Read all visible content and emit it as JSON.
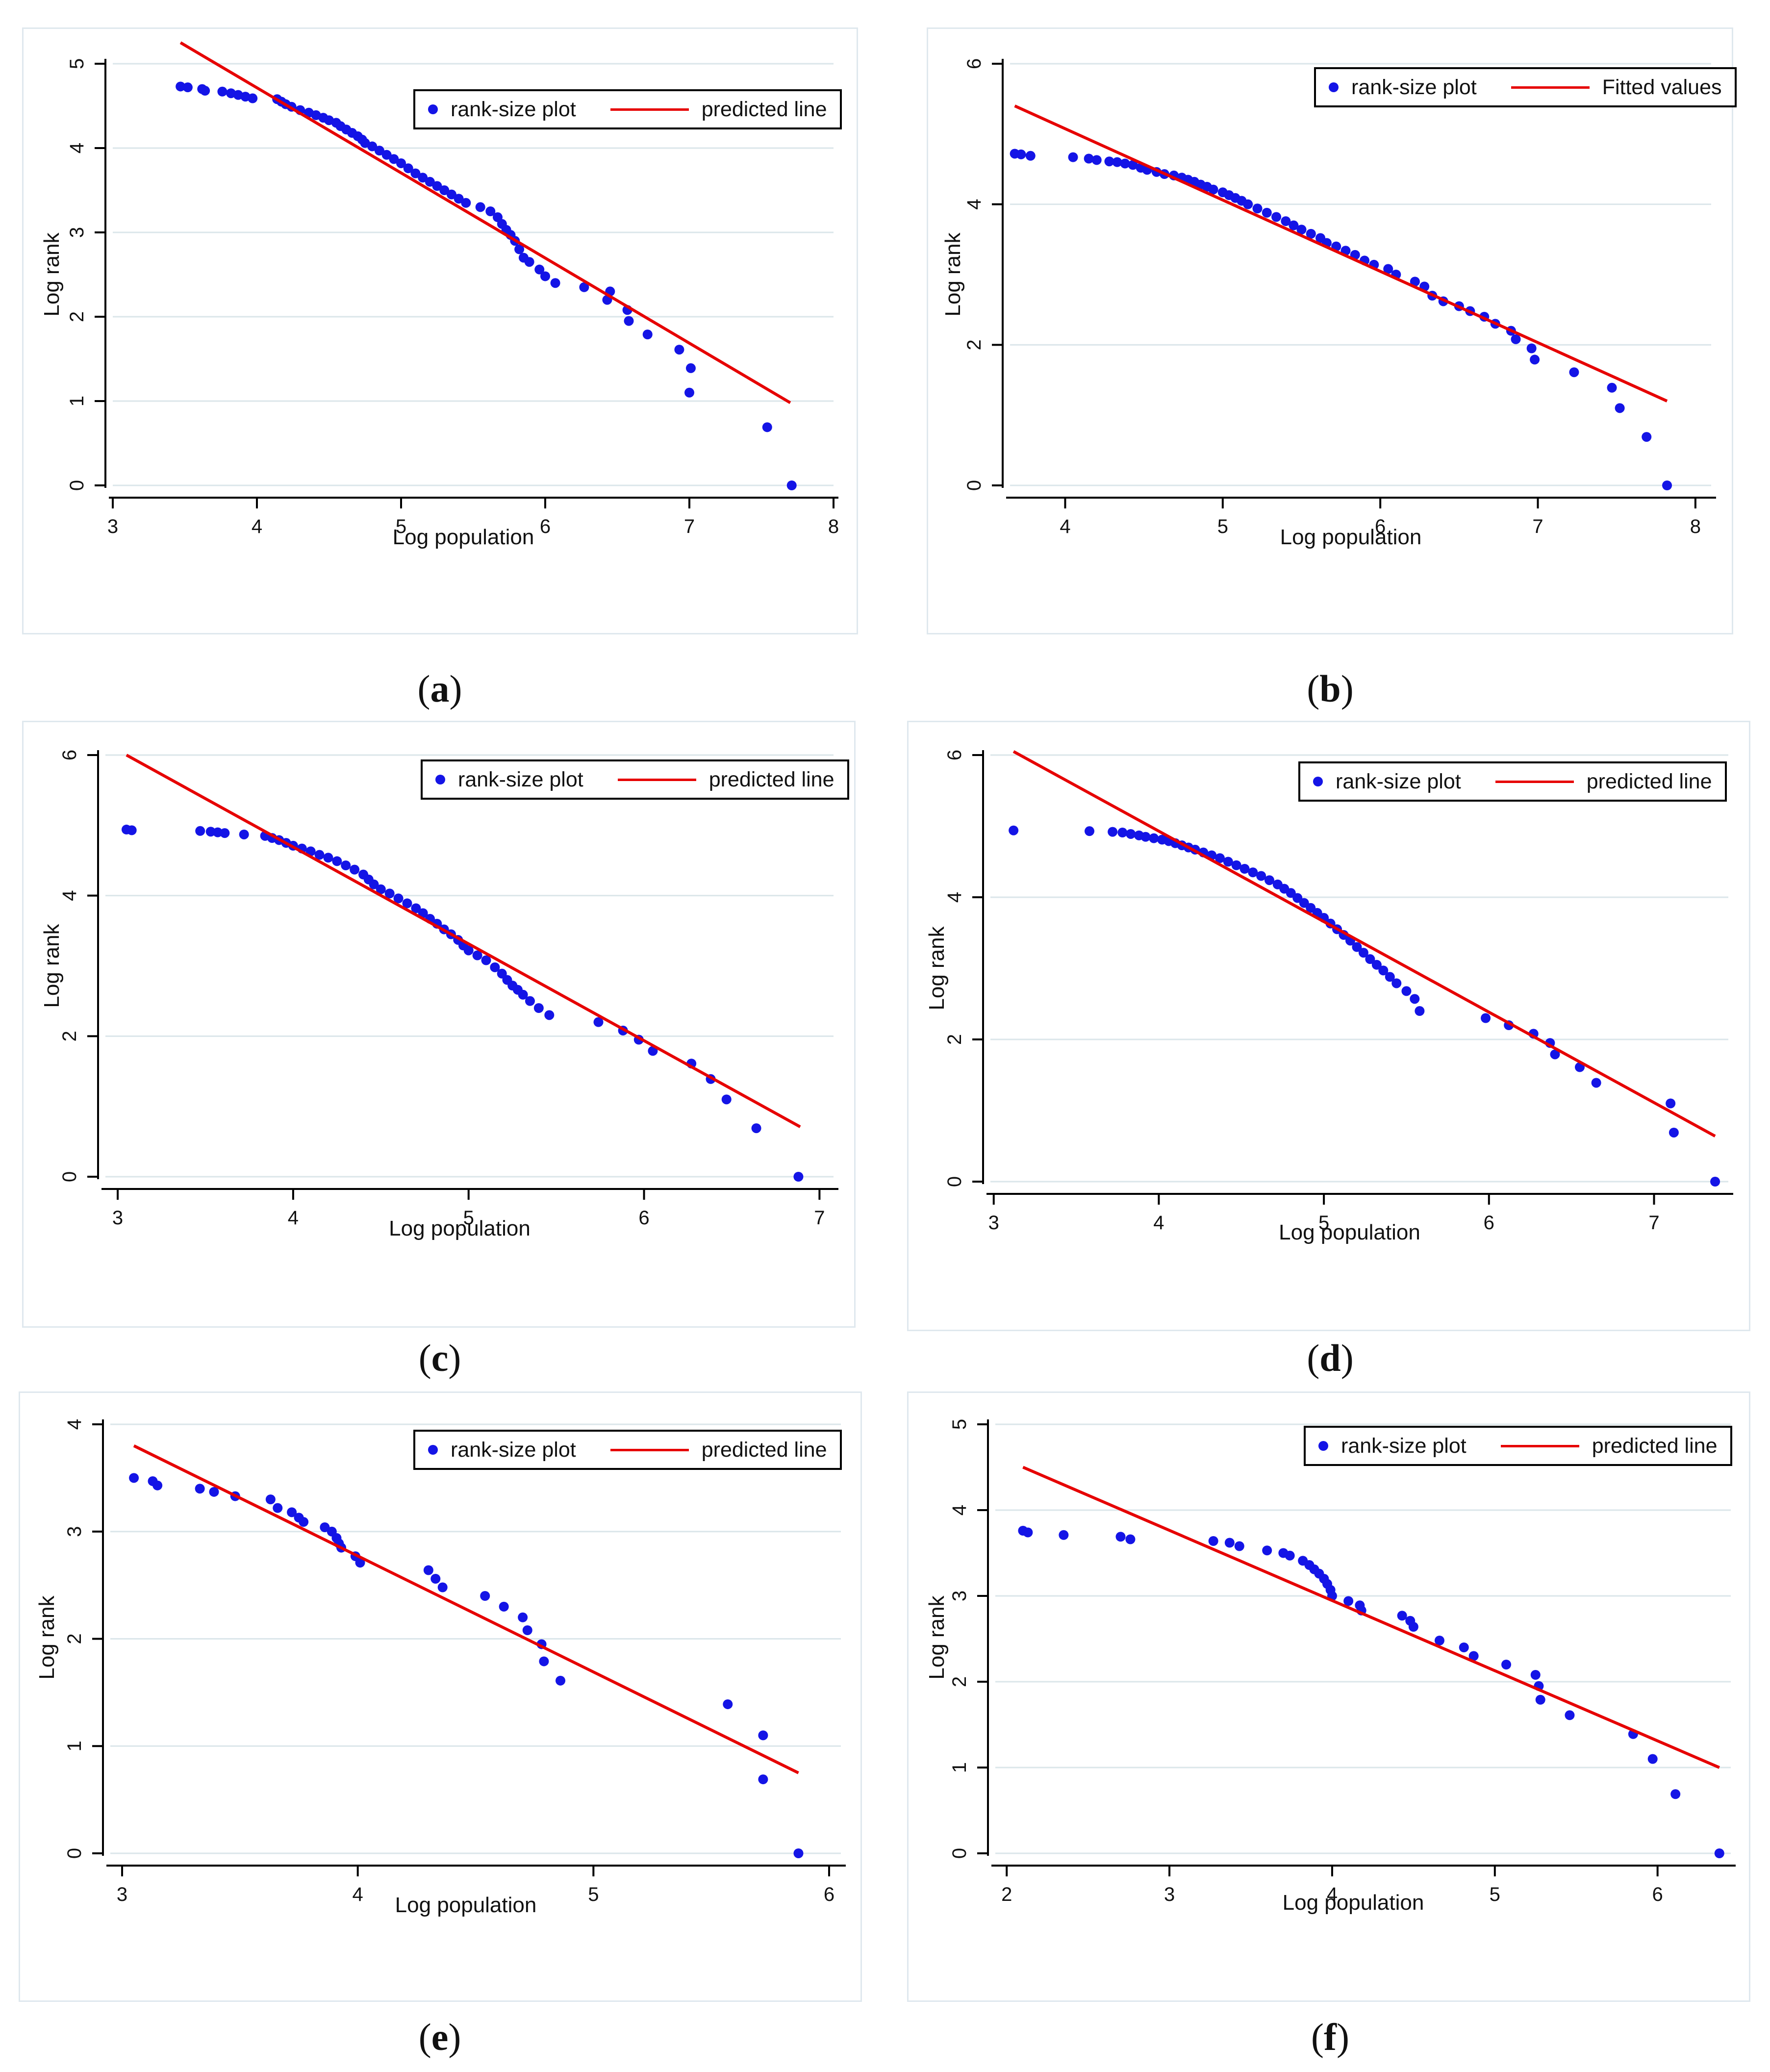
{
  "chart_data": [
    {
      "id": "a",
      "type": "scatter",
      "caption_letter": "a",
      "xlabel": "Log population",
      "ylabel": "Log rank",
      "xlim": [
        3,
        8
      ],
      "ylim": [
        0,
        5
      ],
      "xticks": [
        "3",
        "4",
        "5",
        "6",
        "7",
        "8"
      ],
      "yticks": [
        "0",
        "1",
        "2",
        "3",
        "4",
        "5"
      ],
      "legend": {
        "points": "rank-size plot",
        "line": "predicted line"
      },
      "colors": {
        "points": "#1414e6",
        "line": "#e60000",
        "grid": "#dbe6ea"
      },
      "fit_line": {
        "x": [
          3.47,
          7.7
        ],
        "y": [
          5.25,
          0.98
        ]
      },
      "points": {
        "x": [
          3.47,
          3.52,
          3.62,
          3.64,
          3.76,
          3.82,
          3.87,
          3.92,
          3.97,
          4.14,
          4.17,
          4.2,
          4.24,
          4.3,
          4.36,
          4.41,
          4.46,
          4.5,
          4.55,
          4.58,
          4.62,
          4.66,
          4.7,
          4.73,
          4.75,
          4.8,
          4.85,
          4.9,
          4.95,
          5.0,
          5.05,
          5.1,
          5.15,
          5.2,
          5.25,
          5.3,
          5.35,
          5.4,
          5.45,
          5.55,
          5.62,
          5.67,
          5.7,
          5.73,
          5.76,
          5.79,
          5.82,
          5.85,
          5.89,
          5.96,
          6.0,
          6.07,
          6.27,
          6.43,
          6.45,
          6.57,
          6.58,
          6.71,
          6.93,
          7.01,
          7.0,
          7.54,
          7.71
        ],
        "y": [
          4.73,
          4.72,
          4.7,
          4.68,
          4.67,
          4.65,
          4.63,
          4.61,
          4.59,
          4.58,
          4.55,
          4.52,
          4.49,
          4.45,
          4.42,
          4.39,
          4.36,
          4.33,
          4.3,
          4.26,
          4.22,
          4.18,
          4.14,
          4.1,
          4.06,
          4.02,
          3.97,
          3.92,
          3.87,
          3.82,
          3.76,
          3.7,
          3.65,
          3.6,
          3.55,
          3.5,
          3.45,
          3.4,
          3.35,
          3.3,
          3.25,
          3.18,
          3.1,
          3.03,
          2.97,
          2.9,
          2.8,
          2.7,
          2.65,
          2.56,
          2.48,
          2.4,
          2.35,
          2.2,
          2.3,
          2.08,
          1.95,
          1.79,
          1.61,
          1.39,
          1.1,
          0.69,
          0.0
        ]
      }
    },
    {
      "id": "b",
      "type": "scatter",
      "caption_letter": "b",
      "xlabel": "Log population",
      "ylabel": "Log rank",
      "xlim": [
        3.65,
        8.1
      ],
      "ylim": [
        0,
        6
      ],
      "xticks": [
        "4",
        "5",
        "6",
        "7",
        "8"
      ],
      "yticks": [
        "0",
        "2",
        "4",
        "6"
      ],
      "legend": {
        "points": "rank-size plot",
        "line": "Fitted values"
      },
      "colors": {
        "points": "#1414e6",
        "line": "#e60000",
        "grid": "#dbe6ea"
      },
      "fit_line": {
        "x": [
          3.68,
          7.82
        ],
        "y": [
          5.4,
          1.2
        ]
      },
      "points": {
        "x": [
          3.68,
          3.72,
          3.78,
          4.05,
          4.15,
          4.2,
          4.28,
          4.33,
          4.38,
          4.43,
          4.48,
          4.52,
          4.58,
          4.63,
          4.69,
          4.74,
          4.78,
          4.82,
          4.86,
          4.9,
          4.94,
          5.0,
          5.04,
          5.08,
          5.12,
          5.16,
          5.22,
          5.28,
          5.34,
          5.4,
          5.45,
          5.5,
          5.56,
          5.62,
          5.66,
          5.72,
          5.78,
          5.84,
          5.9,
          5.96,
          6.05,
          6.1,
          6.22,
          6.28,
          6.33,
          6.4,
          6.5,
          6.57,
          6.66,
          6.73,
          6.83,
          6.86,
          6.96,
          6.98,
          7.23,
          7.47,
          7.52,
          7.69,
          7.82
        ],
        "y": [
          4.72,
          4.71,
          4.69,
          4.67,
          4.65,
          4.63,
          4.61,
          4.6,
          4.58,
          4.56,
          4.52,
          4.49,
          4.46,
          4.43,
          4.41,
          4.38,
          4.35,
          4.32,
          4.28,
          4.25,
          4.21,
          4.17,
          4.13,
          4.09,
          4.05,
          4.0,
          3.94,
          3.88,
          3.82,
          3.76,
          3.7,
          3.64,
          3.58,
          3.52,
          3.45,
          3.4,
          3.34,
          3.28,
          3.2,
          3.14,
          3.08,
          3.0,
          2.9,
          2.83,
          2.7,
          2.62,
          2.55,
          2.48,
          2.4,
          2.3,
          2.2,
          2.08,
          1.95,
          1.79,
          1.61,
          1.39,
          1.1,
          0.69,
          0.0
        ]
      }
    },
    {
      "id": "c",
      "type": "scatter",
      "caption_letter": "c",
      "xlabel": "Log population",
      "ylabel": "Log rank",
      "xlim": [
        2.93,
        7.08
      ],
      "ylim": [
        0,
        6
      ],
      "xticks": [
        "3",
        "4",
        "5",
        "6",
        "7"
      ],
      "yticks": [
        "0",
        "2",
        "4",
        "6"
      ],
      "legend": {
        "points": "rank-size plot",
        "line": "predicted line"
      },
      "colors": {
        "points": "#1414e6",
        "line": "#e60000",
        "grid": "#dbe6ea"
      },
      "fit_line": {
        "x": [
          3.05,
          6.89
        ],
        "y": [
          6.0,
          0.71
        ]
      },
      "points": {
        "x": [
          3.05,
          3.08,
          3.47,
          3.53,
          3.57,
          3.61,
          3.72,
          3.84,
          3.88,
          3.92,
          3.96,
          4.0,
          4.05,
          4.1,
          4.15,
          4.2,
          4.25,
          4.3,
          4.35,
          4.4,
          4.43,
          4.46,
          4.5,
          4.55,
          4.6,
          4.65,
          4.7,
          4.74,
          4.78,
          4.82,
          4.86,
          4.9,
          4.94,
          4.97,
          5.0,
          5.05,
          5.1,
          5.15,
          5.19,
          5.22,
          5.25,
          5.28,
          5.31,
          5.35,
          5.4,
          5.46,
          5.74,
          5.88,
          5.97,
          6.05,
          6.27,
          6.38,
          6.47,
          6.64,
          6.88
        ],
        "y": [
          4.94,
          4.93,
          4.92,
          4.91,
          4.9,
          4.89,
          4.87,
          4.85,
          4.82,
          4.79,
          4.75,
          4.71,
          4.67,
          4.63,
          4.58,
          4.54,
          4.49,
          4.43,
          4.37,
          4.3,
          4.23,
          4.16,
          4.09,
          4.03,
          3.96,
          3.89,
          3.82,
          3.75,
          3.67,
          3.6,
          3.52,
          3.45,
          3.37,
          3.29,
          3.22,
          3.15,
          3.08,
          2.98,
          2.89,
          2.8,
          2.72,
          2.66,
          2.59,
          2.5,
          2.4,
          2.3,
          2.2,
          2.08,
          1.95,
          1.79,
          1.61,
          1.39,
          1.1,
          0.69,
          0.0
        ]
      }
    },
    {
      "id": "d",
      "type": "scatter",
      "caption_letter": "d",
      "xlabel": "Log population",
      "ylabel": "Log rank",
      "xlim": [
        2.98,
        7.45
      ],
      "ylim": [
        0,
        6
      ],
      "xticks": [
        "3",
        "4",
        "5",
        "6",
        "7"
      ],
      "yticks": [
        "0",
        "2",
        "4",
        "6"
      ],
      "legend": {
        "points": "rank-size plot",
        "line": "predicted line"
      },
      "colors": {
        "points": "#1414e6",
        "line": "#e60000",
        "grid": "#dbe6ea"
      },
      "fit_line": {
        "x": [
          3.12,
          7.37
        ],
        "y": [
          6.05,
          0.64
        ]
      },
      "points": {
        "x": [
          3.12,
          3.58,
          3.72,
          3.78,
          3.83,
          3.88,
          3.92,
          3.97,
          4.02,
          4.06,
          4.1,
          4.14,
          4.18,
          4.22,
          4.27,
          4.32,
          4.37,
          4.42,
          4.47,
          4.52,
          4.57,
          4.62,
          4.67,
          4.72,
          4.76,
          4.8,
          4.84,
          4.88,
          4.92,
          4.96,
          5.0,
          5.04,
          5.08,
          5.12,
          5.16,
          5.2,
          5.24,
          5.28,
          5.32,
          5.36,
          5.4,
          5.44,
          5.5,
          5.55,
          5.58,
          5.98,
          6.12,
          6.27,
          6.37,
          6.4,
          6.55,
          6.65,
          7.1,
          7.12,
          7.37
        ],
        "y": [
          4.94,
          4.93,
          4.92,
          4.91,
          4.89,
          4.87,
          4.85,
          4.83,
          4.81,
          4.79,
          4.76,
          4.73,
          4.7,
          4.67,
          4.63,
          4.59,
          4.55,
          4.5,
          4.45,
          4.4,
          4.35,
          4.3,
          4.24,
          4.18,
          4.12,
          4.06,
          3.99,
          3.92,
          3.85,
          3.78,
          3.71,
          3.63,
          3.55,
          3.47,
          3.39,
          3.3,
          3.22,
          3.13,
          3.05,
          2.97,
          2.88,
          2.79,
          2.68,
          2.57,
          2.4,
          2.3,
          2.2,
          2.08,
          1.95,
          1.79,
          1.61,
          1.39,
          1.1,
          0.69,
          0.0
        ]
      }
    },
    {
      "id": "e",
      "type": "scatter",
      "caption_letter": "e",
      "xlabel": "Log population",
      "ylabel": "Log rank",
      "xlim": [
        2.95,
        6.05
      ],
      "ylim": [
        0,
        4
      ],
      "xticks": [
        "3",
        "4",
        "5",
        "6"
      ],
      "yticks": [
        "0",
        "1",
        "2",
        "3",
        "4"
      ],
      "legend": {
        "points": "rank-size plot",
        "line": "predicted line"
      },
      "colors": {
        "points": "#1414e6",
        "line": "#e60000",
        "grid": "#dbe6ea"
      },
      "fit_line": {
        "x": [
          3.05,
          5.87
        ],
        "y": [
          3.8,
          0.75
        ]
      },
      "points": {
        "x": [
          3.05,
          3.13,
          3.15,
          3.33,
          3.39,
          3.48,
          3.63,
          3.66,
          3.72,
          3.75,
          3.77,
          3.86,
          3.89,
          3.91,
          3.92,
          3.93,
          3.99,
          4.01,
          4.3,
          4.33,
          4.36,
          4.54,
          4.62,
          4.7,
          4.72,
          4.78,
          4.79,
          4.86,
          5.57,
          5.72,
          5.72,
          5.87
        ],
        "y": [
          3.5,
          3.47,
          3.43,
          3.4,
          3.37,
          3.33,
          3.3,
          3.22,
          3.18,
          3.13,
          3.09,
          3.04,
          3.0,
          2.94,
          2.89,
          2.85,
          2.77,
          2.71,
          2.64,
          2.56,
          2.48,
          2.4,
          2.3,
          2.2,
          2.08,
          1.95,
          1.79,
          1.61,
          1.39,
          1.1,
          0.69,
          0.0
        ]
      }
    },
    {
      "id": "f",
      "type": "scatter",
      "caption_letter": "f",
      "xlabel": "Log population",
      "ylabel": "Log rank",
      "xlim": [
        1.93,
        6.45
      ],
      "ylim": [
        0,
        5
      ],
      "xticks": [
        "2",
        "3",
        "4",
        "5",
        "6"
      ],
      "yticks": [
        "0",
        "1",
        "2",
        "3",
        "4",
        "5"
      ],
      "legend": {
        "points": "rank-size plot",
        "line": "predicted line"
      },
      "colors": {
        "points": "#1414e6",
        "line": "#e60000",
        "grid": "#dbe6ea"
      },
      "fit_line": {
        "x": [
          2.1,
          6.38
        ],
        "y": [
          4.5,
          1.0
        ]
      },
      "points": {
        "x": [
          2.1,
          2.13,
          2.35,
          2.7,
          2.76,
          3.27,
          3.37,
          3.43,
          3.6,
          3.7,
          3.74,
          3.82,
          3.86,
          3.89,
          3.92,
          3.95,
          3.97,
          3.99,
          4.0,
          4.1,
          4.17,
          4.18,
          4.43,
          4.48,
          4.5,
          4.66,
          4.81,
          4.87,
          5.07,
          5.25,
          5.27,
          5.28,
          5.46,
          5.85,
          5.97,
          6.11,
          6.38
        ],
        "y": [
          3.76,
          3.74,
          3.71,
          3.69,
          3.66,
          3.64,
          3.62,
          3.58,
          3.53,
          3.5,
          3.47,
          3.41,
          3.36,
          3.31,
          3.26,
          3.2,
          3.14,
          3.07,
          3.0,
          2.94,
          2.89,
          2.83,
          2.77,
          2.71,
          2.64,
          2.48,
          2.4,
          2.3,
          2.2,
          2.08,
          1.95,
          1.79,
          1.61,
          1.39,
          1.1,
          0.69,
          0.0
        ]
      }
    }
  ]
}
